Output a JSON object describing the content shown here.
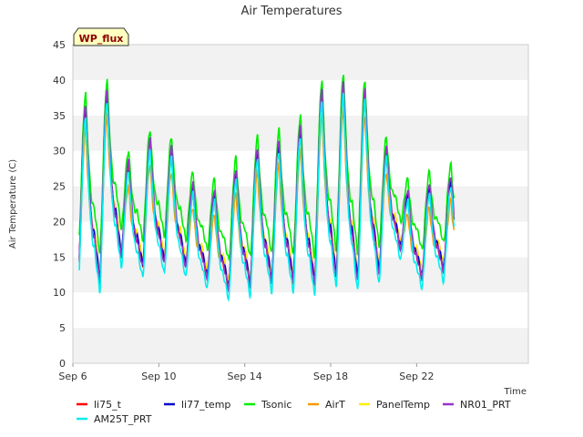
{
  "chart_data": {
    "type": "line",
    "title": "Air Temperatures",
    "badge": "WP_flux",
    "xlabel": "Time",
    "ylabel": "Air Temperature (C)",
    "ylim": [
      0,
      45
    ],
    "yticks": [
      0,
      5,
      10,
      15,
      20,
      25,
      30,
      35,
      40,
      45
    ],
    "xlim": [
      6,
      27.2
    ],
    "xticks": [
      {
        "value": 6,
        "label": "Sep 6"
      },
      {
        "value": 10,
        "label": "Sep 10"
      },
      {
        "value": 14,
        "label": "Sep 14"
      },
      {
        "value": 18,
        "label": "Sep 18"
      },
      {
        "value": 22,
        "label": "Sep 22"
      }
    ],
    "grid": "horizontal alternating bands",
    "legend_position": "bottom",
    "days": [
      6.5,
      7.5,
      8.5,
      9.5,
      10.5,
      11.5,
      12.5,
      13.5,
      14.5,
      15.5,
      16.5,
      17.5,
      18.5,
      19.5,
      20.5,
      21.5,
      22.5,
      23.5
    ],
    "daily_max": [
      36,
      38,
      28,
      31,
      30,
      25,
      24,
      27,
      30,
      31,
      33,
      38,
      39,
      38,
      30,
      24,
      25,
      26
    ],
    "daily_min": [
      11,
      10.5,
      14,
      12.5,
      13,
      12.5,
      11,
      9.5,
      10,
      10.5,
      10.5,
      10,
      11,
      10.5,
      11.5,
      15,
      11,
      12
    ],
    "series": [
      {
        "name": "li75_t",
        "color": "#ff0000",
        "offset_max": 0,
        "offset_min": 1
      },
      {
        "name": "li77_temp",
        "color": "#0000cc",
        "offset_max": -0.5,
        "offset_min": 1.5
      },
      {
        "name": "Tsonic",
        "color": "#00ee00",
        "offset_max": 2,
        "offset_min": 5
      },
      {
        "name": "AirT",
        "color": "#ff9900",
        "offset_max": -3,
        "offset_min": 2
      },
      {
        "name": "PanelTemp",
        "color": "#ffee00",
        "offset_max": -1,
        "offset_min": 2
      },
      {
        "name": "NR01_PRT",
        "color": "#9933cc",
        "offset_max": 0.5,
        "offset_min": 1
      },
      {
        "name": "AM25T_PRT",
        "color": "#00eeee",
        "offset_max": -1,
        "offset_min": -0.5
      }
    ]
  }
}
